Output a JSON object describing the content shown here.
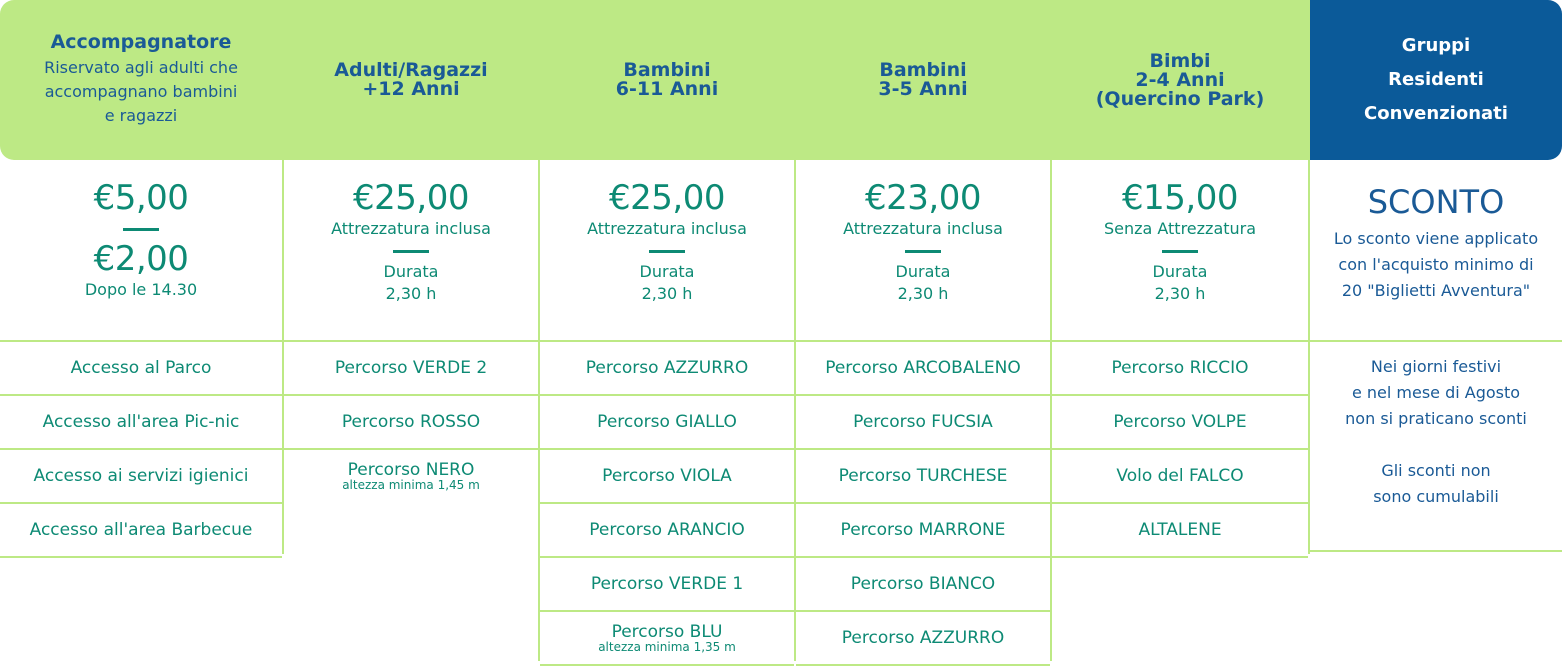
{
  "columns": [
    {
      "title": "Accompagnatore",
      "subtitle": "Riservato agli adulti che accompagnano bambini e ragazzi",
      "price1": "€5,00",
      "price2": "€2,00",
      "price_note": "Dopo le 14.30",
      "items": [
        {
          "label": "Accesso al Parco"
        },
        {
          "label": "Accesso all'area Pic-nic"
        },
        {
          "label": "Accesso ai servizi igienici"
        },
        {
          "label": "Accesso all'area Barbecue"
        }
      ]
    },
    {
      "title_line1": "Adulti/Ragazzi",
      "title_line2": "+12 Anni",
      "price": "€25,00",
      "equipment": "Attrezzatura inclusa",
      "duration_label": "Durata",
      "duration": "2,30 h",
      "items": [
        {
          "label": "Percorso VERDE 2"
        },
        {
          "label": "Percorso ROSSO"
        },
        {
          "label": "Percorso NERO",
          "note": "altezza minima 1,45 m"
        }
      ]
    },
    {
      "title_line1": "Bambini",
      "title_line2": "6-11 Anni",
      "price": "€25,00",
      "equipment": "Attrezzatura inclusa",
      "duration_label": "Durata",
      "duration": "2,30 h",
      "items": [
        {
          "label": "Percorso AZZURRO"
        },
        {
          "label": "Percorso GIALLO"
        },
        {
          "label": "Percorso VIOLA"
        },
        {
          "label": "Percorso ARANCIO"
        },
        {
          "label": "Percorso VERDE 1"
        },
        {
          "label": "Percorso BLU",
          "note": "altezza minima 1,35 m"
        }
      ]
    },
    {
      "title_line1": "Bambini",
      "title_line2": "3-5 Anni",
      "price": "€23,00",
      "equipment": "Attrezzatura inclusa",
      "duration_label": "Durata",
      "duration": "2,30 h",
      "items": [
        {
          "label": "Percorso ARCOBALENO"
        },
        {
          "label": "Percorso FUCSIA"
        },
        {
          "label": "Percorso TURCHESE"
        },
        {
          "label": "Percorso MARRONE"
        },
        {
          "label": "Percorso BIANCO"
        },
        {
          "label": "Percorso AZZURRO"
        }
      ]
    },
    {
      "title_line1": "Bimbi",
      "title_line2": "2-4 Anni",
      "title_line3": "(Quercino Park)",
      "price": "€15,00",
      "equipment": "Senza Attrezzatura",
      "duration_label": "Durata",
      "duration": "2,30 h",
      "items": [
        {
          "label": "Percorso RICCIO"
        },
        {
          "label": "Percorso VOLPE"
        },
        {
          "label": "Volo del FALCO"
        },
        {
          "label": "ALTALENE"
        }
      ]
    },
    {
      "title_line1": "Gruppi",
      "title_line2": "Residenti",
      "title_line3": "Convenzionati",
      "heading": "SCONTO",
      "text_line1": "Lo sconto viene applicato",
      "text_line2": "con l'acquisto minimo di",
      "text_line3": "20 \"Biglietti Avventura\"",
      "note1_line1": "Nei giorni festivi",
      "note1_line2": "e nel mese di Agosto",
      "note1_line3": "non si praticano sconti",
      "note2_line1": "Gli sconti non",
      "note2_line2": "sono cumulabili"
    }
  ],
  "colors": {
    "header_green": "#bde985",
    "header_blue": "#0b5a99",
    "text_teal": "#0d8a74",
    "text_blue": "#1a5a96"
  }
}
